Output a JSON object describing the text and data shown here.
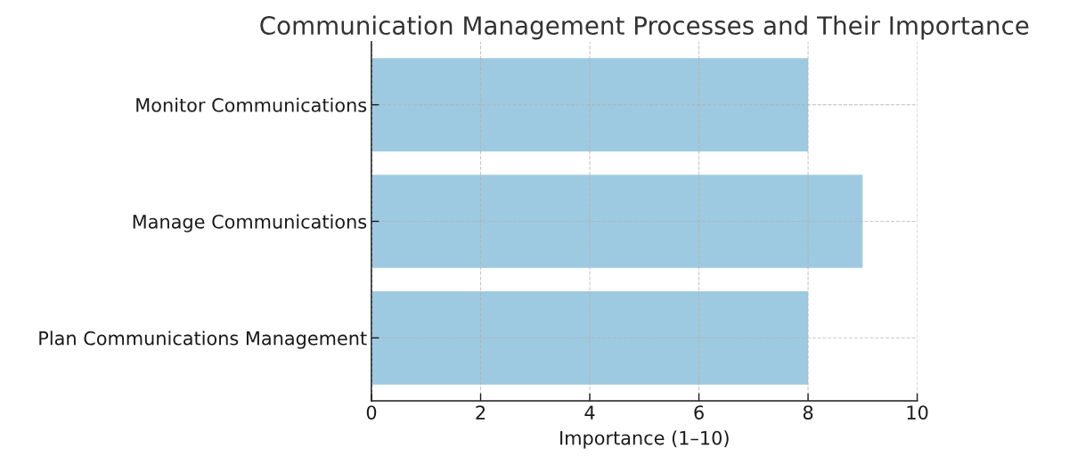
{
  "chart_data": {
    "type": "bar",
    "orientation": "horizontal",
    "title": "Communication Management Processes and Their Importance",
    "xlabel": "Importance (1–10)",
    "categories": [
      "Monitor Communications",
      "Manage Communications",
      "Plan Communications Management"
    ],
    "values": [
      8,
      9,
      8
    ],
    "color": "#9ecae1",
    "xlim": [
      0,
      10
    ],
    "xticks": [
      0,
      2,
      4,
      6,
      8,
      10
    ],
    "grid": true,
    "line_style": "dashed"
  }
}
